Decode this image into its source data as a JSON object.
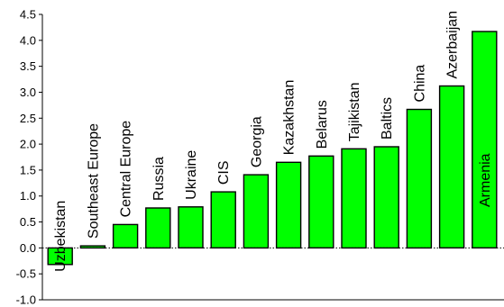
{
  "chart_data": {
    "type": "bar",
    "categories": [
      "Uzbekistan",
      "Southeast Europe",
      "Central Europe",
      "Russia",
      "Ukraine",
      "CIS",
      "Georgia",
      "Kazakhstan",
      "Belarus",
      "Tajikistan",
      "Baltics",
      "China",
      "Azerbaijan",
      "Armenia"
    ],
    "values": [
      -0.32,
      0.04,
      0.45,
      0.77,
      0.79,
      1.08,
      1.41,
      1.65,
      1.77,
      1.91,
      1.95,
      2.67,
      3.12,
      4.17
    ],
    "title": "",
    "xlabel": "",
    "ylabel": "",
    "ylim": [
      -1.0,
      4.5
    ],
    "yticks": [
      "-1.0",
      "-0.5",
      "0.0",
      "0.5",
      "1.0",
      "1.5",
      "2.0",
      "2.5",
      "3.0",
      "3.5",
      "4.0",
      "4.5"
    ],
    "bar_color": "#00ff00",
    "zero_line": "dotted",
    "grid": false,
    "legend": "none"
  }
}
